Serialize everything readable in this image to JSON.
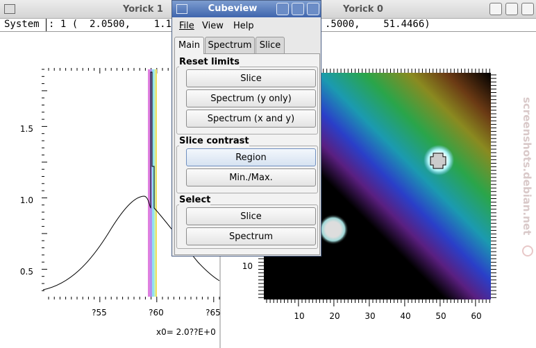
{
  "yorick1": {
    "title": "Yorick 1",
    "status_label": "System",
    "status_value": ": 1 (  2.0500,    1.1",
    "y_labels": [
      "1.5",
      "1.0",
      "0.5"
    ],
    "x_labels": [
      "?55",
      "?60",
      "?65"
    ],
    "caption": "x0= 2.0??E+0"
  },
  "yorick0": {
    "title": "Yorick 0",
    "status_value": ".5000,    51.4466)",
    "x_labels": [
      "10",
      "20",
      "30",
      "40",
      "50",
      "60"
    ],
    "y_labels": [
      "10"
    ]
  },
  "cubeview": {
    "title": "Cubeview",
    "menu": [
      "File",
      "View",
      "Help"
    ],
    "tabs": [
      "Main",
      "Spectrum",
      "Slice"
    ],
    "groups": [
      {
        "label": "Reset limits",
        "buttons": [
          "Slice",
          "Spectrum (y only)",
          "Spectrum (x and y)"
        ]
      },
      {
        "label": "Slice contrast",
        "buttons": [
          "Region",
          "Min./Max."
        ]
      },
      {
        "label": "Select",
        "buttons": [
          "Slice",
          "Spectrum"
        ]
      }
    ]
  },
  "watermark": "screenshots.debian.net"
}
